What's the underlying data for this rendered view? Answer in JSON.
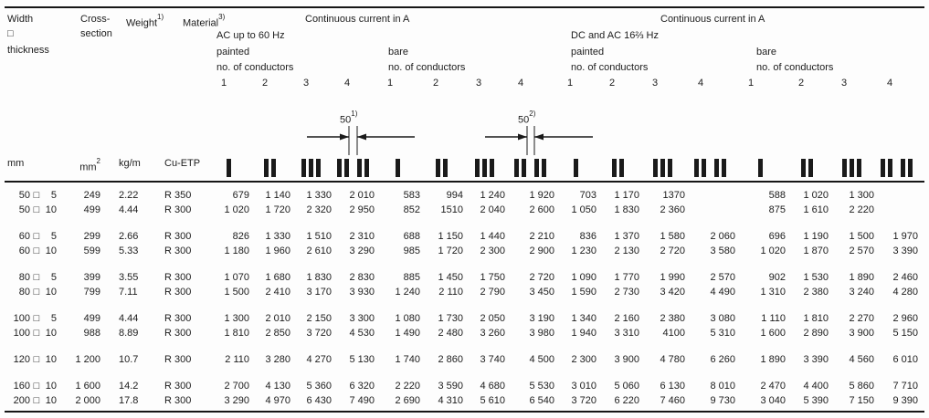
{
  "header": {
    "width_line1": "Width",
    "width_line2": "□",
    "width_line3": "thickness",
    "cross_line1": "Cross-",
    "cross_line2": "section",
    "weight_label": "Weight",
    "weight_sup": "1)",
    "material_label": "Material",
    "material_sup": "3)",
    "cc": "Continuous current in A",
    "ac_freq": "AC up to 60 Hz",
    "dc_freq": "DC and AC 16⅔ Hz",
    "painted": "painted",
    "bare": "bare",
    "no_of_conductors": "no. of conductors",
    "conductor_numbers": [
      "1",
      "2",
      "3",
      "4"
    ]
  },
  "annotations": {
    "gap_ac": {
      "value": "50",
      "sup": "1)"
    },
    "gap_dc": {
      "value": "50",
      "sup": "2)"
    }
  },
  "units": {
    "dim": "mm",
    "cross_base": "mm",
    "cross_sup": "2",
    "weight": "kg/m",
    "material": "Cu-ETP"
  },
  "symbols": {
    "box": "□"
  },
  "conductor_icons": [
    "bars-1",
    "bars-2",
    "bars-3",
    "bars-2x2"
  ],
  "chart_data": {
    "type": "table",
    "title": "Continuous current in A",
    "column_groups": [
      "AC up to 60 Hz painted 1-4",
      "AC up to 60 Hz bare 1-4",
      "DC and AC 16 2/3 Hz painted 1-4",
      "DC and AC 16 2/3 Hz bare 1-4"
    ]
  },
  "rows": [
    {
      "w": "50",
      "t": "5",
      "cross": "249",
      "weight": "2.22",
      "material": "R 350",
      "gap_before": false,
      "values": [
        "679",
        "1 140",
        "1 330",
        "2 010",
        "583",
        "994",
        "1 240",
        "1 920",
        "703",
        "1 170",
        "1370",
        "",
        "588",
        "1 020",
        "1 300",
        ""
      ]
    },
    {
      "w": "50",
      "t": "10",
      "cross": "499",
      "weight": "4.44",
      "material": "R 300",
      "gap_before": false,
      "values": [
        "1 020",
        "1 720",
        "2 320",
        "2 950",
        "852",
        "1510",
        "2 040",
        "2 600",
        "1 050",
        "1 830",
        "2 360",
        "",
        "875",
        "1 610",
        "2 220",
        ""
      ]
    },
    {
      "w": "60",
      "t": "5",
      "cross": "299",
      "weight": "2.66",
      "material": "R 300",
      "gap_before": true,
      "values": [
        "826",
        "1 330",
        "1 510",
        "2 310",
        "688",
        "1 150",
        "1 440",
        "2 210",
        "836",
        "1 370",
        "1 580",
        "2 060",
        "696",
        "1 190",
        "1 500",
        "1 970"
      ]
    },
    {
      "w": "60",
      "t": "10",
      "cross": "599",
      "weight": "5.33",
      "material": "R 300",
      "gap_before": false,
      "values": [
        "1 180",
        "1 960",
        "2 610",
        "3 290",
        "985",
        "1 720",
        "2 300",
        "2 900",
        "1 230",
        "2 130",
        "2 720",
        "3 580",
        "1 020",
        "1 870",
        "2 570",
        "3 390"
      ]
    },
    {
      "w": "80",
      "t": "5",
      "cross": "399",
      "weight": "3.55",
      "material": "R 300",
      "gap_before": true,
      "values": [
        "1 070",
        "1 680",
        "1 830",
        "2 830",
        "885",
        "1 450",
        "1 750",
        "2 720",
        "1 090",
        "1 770",
        "1 990",
        "2 570",
        "902",
        "1 530",
        "1 890",
        "2 460"
      ]
    },
    {
      "w": "80",
      "t": "10",
      "cross": "799",
      "weight": "7.11",
      "material": "R 300",
      "gap_before": false,
      "values": [
        "1 500",
        "2 410",
        "3 170",
        "3 930",
        "1 240",
        "2 110",
        "2 790",
        "3 450",
        "1 590",
        "2 730",
        "3 420",
        "4 490",
        "1 310",
        "2 380",
        "3 240",
        "4 280"
      ]
    },
    {
      "w": "100",
      "t": "5",
      "cross": "499",
      "weight": "4.44",
      "material": "R 300",
      "gap_before": true,
      "values": [
        "1 300",
        "2 010",
        "2 150",
        "3 300",
        "1 080",
        "1 730",
        "2 050",
        "3 190",
        "1 340",
        "2 160",
        "2 380",
        "3 080",
        "1 110",
        "1 810",
        "2 270",
        "2 960"
      ]
    },
    {
      "w": "100",
      "t": "10",
      "cross": "988",
      "weight": "8.89",
      "material": "R 300",
      "gap_before": false,
      "values": [
        "1 810",
        "2 850",
        "3 720",
        "4 530",
        "1 490",
        "2 480",
        "3 260",
        "3 980",
        "1 940",
        "3 310",
        "4100",
        "5 310",
        "1 600",
        "2 890",
        "3 900",
        "5 150"
      ]
    },
    {
      "w": "120",
      "t": "10",
      "cross": "1 200",
      "weight": "10.7",
      "material": "R 300",
      "gap_before": true,
      "values": [
        "2 110",
        "3 280",
        "4 270",
        "5 130",
        "1 740",
        "2 860",
        "3 740",
        "4 500",
        "2 300",
        "3 900",
        "4 780",
        "6 260",
        "1 890",
        "3 390",
        "4 560",
        "6 010"
      ]
    },
    {
      "w": "160",
      "t": "10",
      "cross": "1 600",
      "weight": "14.2",
      "material": "R 300",
      "gap_before": true,
      "values": [
        "2 700",
        "4 130",
        "5 360",
        "6 320",
        "2 220",
        "3 590",
        "4 680",
        "5 530",
        "3 010",
        "5 060",
        "6 130",
        "8 010",
        "2 470",
        "4 400",
        "5 860",
        "7 710"
      ]
    },
    {
      "w": "200",
      "t": "10",
      "cross": "2 000",
      "weight": "17.8",
      "material": "R 300",
      "gap_before": false,
      "values": [
        "3 290",
        "4 970",
        "6 430",
        "7 490",
        "2 690",
        "4 310",
        "5 610",
        "6 540",
        "3 720",
        "6 220",
        "7 460",
        "9 730",
        "3 040",
        "5 390",
        "7 150",
        "9 390"
      ]
    }
  ]
}
